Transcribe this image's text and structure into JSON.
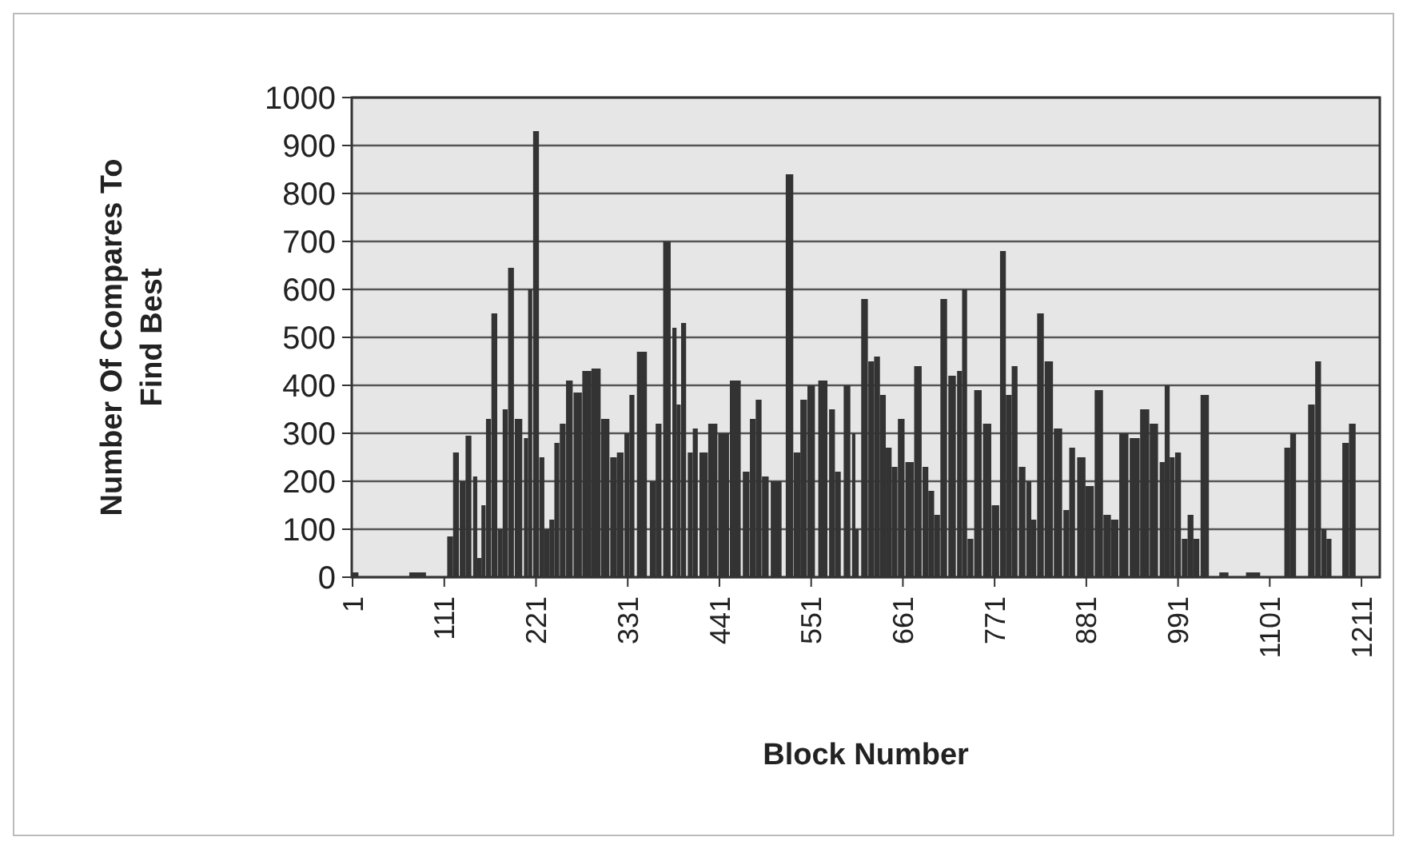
{
  "chart_data": {
    "type": "bar",
    "xlabel": "Block Number",
    "ylabel": "Number Of Compares To Find Best",
    "x": [
      4,
      41,
      79,
      99,
      118,
      125,
      133,
      140,
      148,
      153,
      158,
      164,
      171,
      178,
      184,
      191,
      200,
      209,
      214,
      221,
      228,
      234,
      240,
      246,
      253,
      261,
      271,
      282,
      293,
      304,
      314,
      322,
      330,
      336,
      348,
      361,
      368,
      378,
      387,
      392,
      398,
      406,
      412,
      422,
      433,
      446,
      460,
      473,
      481,
      488,
      496,
      509,
      525,
      534,
      542,
      551,
      565,
      576,
      583,
      594,
      602,
      606,
      615,
      623,
      630,
      637,
      644,
      651,
      659,
      669,
      679,
      688,
      695,
      702,
      710,
      720,
      729,
      735,
      742,
      751,
      762,
      772,
      781,
      788,
      795,
      804,
      812,
      818,
      826,
      836,
      847,
      857,
      864,
      875,
      885,
      896,
      906,
      915,
      926,
      939,
      951,
      962,
      972,
      978,
      984,
      991,
      999,
      1006,
      1013,
      1023,
      1035,
      1046,
      1064,
      1081,
      1103,
      1122,
      1129,
      1141,
      1151,
      1159,
      1166,
      1172,
      1182,
      1192,
      1200,
      1219
    ],
    "values": [
      10,
      0,
      10,
      0,
      85,
      260,
      200,
      295,
      210,
      40,
      150,
      330,
      550,
      100,
      350,
      645,
      330,
      290,
      600,
      930,
      250,
      100,
      120,
      280,
      320,
      410,
      385,
      430,
      435,
      330,
      250,
      260,
      300,
      380,
      470,
      200,
      320,
      700,
      520,
      360,
      530,
      260,
      310,
      260,
      320,
      300,
      410,
      220,
      330,
      370,
      210,
      200,
      840,
      260,
      370,
      400,
      410,
      350,
      220,
      400,
      300,
      100,
      580,
      450,
      460,
      380,
      270,
      230,
      330,
      240,
      440,
      230,
      180,
      130,
      580,
      420,
      430,
      600,
      80,
      390,
      320,
      150,
      680,
      380,
      440,
      230,
      200,
      120,
      550,
      450,
      310,
      140,
      270,
      250,
      190,
      390,
      130,
      120,
      300,
      290,
      350,
      320,
      240,
      400,
      250,
      260,
      80,
      130,
      80,
      380,
      0,
      10,
      0,
      10,
      0,
      270,
      300,
      0,
      360,
      450,
      100,
      80,
      0,
      280,
      320,
      0
    ],
    "color": "#333333",
    "xlim": [
      0,
      1233
    ],
    "xticks": [
      1,
      111,
      221,
      331,
      441,
      551,
      661,
      771,
      881,
      991,
      1101,
      1211
    ],
    "ylim": [
      0,
      1000
    ],
    "yticks": [
      0,
      100,
      200,
      300,
      400,
      500,
      600,
      700,
      800,
      900,
      1000
    ],
    "grid": "y"
  }
}
